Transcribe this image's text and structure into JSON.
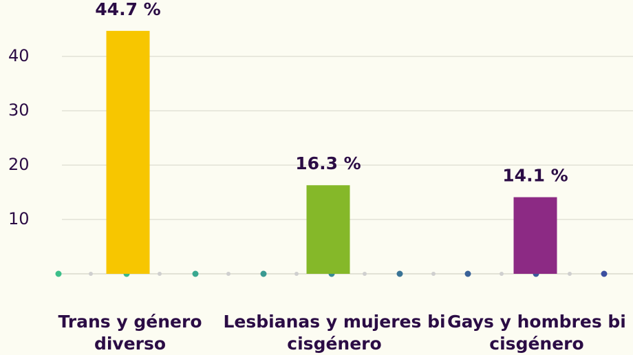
{
  "chart_data": {
    "type": "bar",
    "categories": [
      "Trans y género diverso",
      "Lesbianas y mujeres bi cisgénero",
      "Gays y hombres bi cisgénero"
    ],
    "values": [
      44.7,
      16.3,
      14.1
    ],
    "value_labels": [
      "44.7 %",
      "16.3 %",
      "14.1 %"
    ],
    "colors": [
      "#f7c600",
      "#85b829",
      "#8c2a84"
    ],
    "ylim": [
      0,
      50
    ],
    "yticks": [
      10,
      20,
      30,
      40
    ],
    "grid": true
  }
}
